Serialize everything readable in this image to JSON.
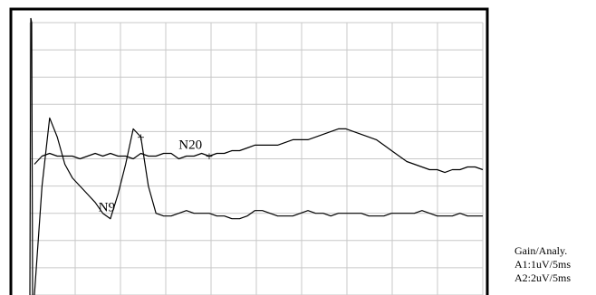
{
  "chart_data": {
    "type": "line",
    "title": "",
    "xlabel": "",
    "ylabel": "",
    "x_divisions": 10,
    "y_divisions": 10,
    "grid": true,
    "colors": {
      "trace": "#000000",
      "grid": "#c8c8c8",
      "frame": "#000000",
      "background": "#ffffff"
    },
    "series": [
      {
        "channel": "A1",
        "values": [
          52,
          49,
          48,
          49,
          49,
          49,
          50,
          49,
          48,
          49,
          48,
          49,
          49,
          50,
          48,
          49,
          49,
          48,
          48,
          50,
          49,
          49,
          48,
          49,
          48,
          48,
          47,
          47,
          46,
          45,
          45,
          45,
          45,
          44,
          43,
          43,
          43,
          42,
          41,
          40,
          39,
          39,
          40,
          41,
          42,
          43,
          45,
          47,
          49,
          51,
          52,
          53,
          54,
          54,
          55,
          54,
          54,
          53,
          53,
          54
        ]
      },
      {
        "channel": "A2",
        "values": [
          100,
          60,
          35,
          42,
          52,
          57,
          60,
          63,
          66,
          70,
          72,
          63,
          52,
          39,
          42,
          60,
          70,
          71,
          71,
          70,
          69,
          70,
          70,
          70,
          71,
          71,
          72,
          72,
          71,
          69,
          69,
          70,
          71,
          71,
          71,
          70,
          69,
          70,
          70,
          71,
          70,
          70,
          70,
          70,
          71,
          71,
          71,
          70,
          70,
          70,
          70,
          69,
          70,
          71,
          71,
          71,
          70,
          71,
          71,
          71
        ]
      }
    ],
    "annotations": [
      {
        "text": "N20",
        "series": 0,
        "x": 21
      },
      {
        "text": "N9",
        "series": 1,
        "x": 10
      }
    ],
    "markers": [
      {
        "glyph": "+",
        "series": 0,
        "x": 23
      },
      {
        "glyph": "+",
        "series": 1,
        "x": 14
      }
    ]
  },
  "info": {
    "heading": "Gain/Analy.",
    "lines": [
      "A1:1uV/5ms",
      "A2:2uV/5ms"
    ]
  }
}
